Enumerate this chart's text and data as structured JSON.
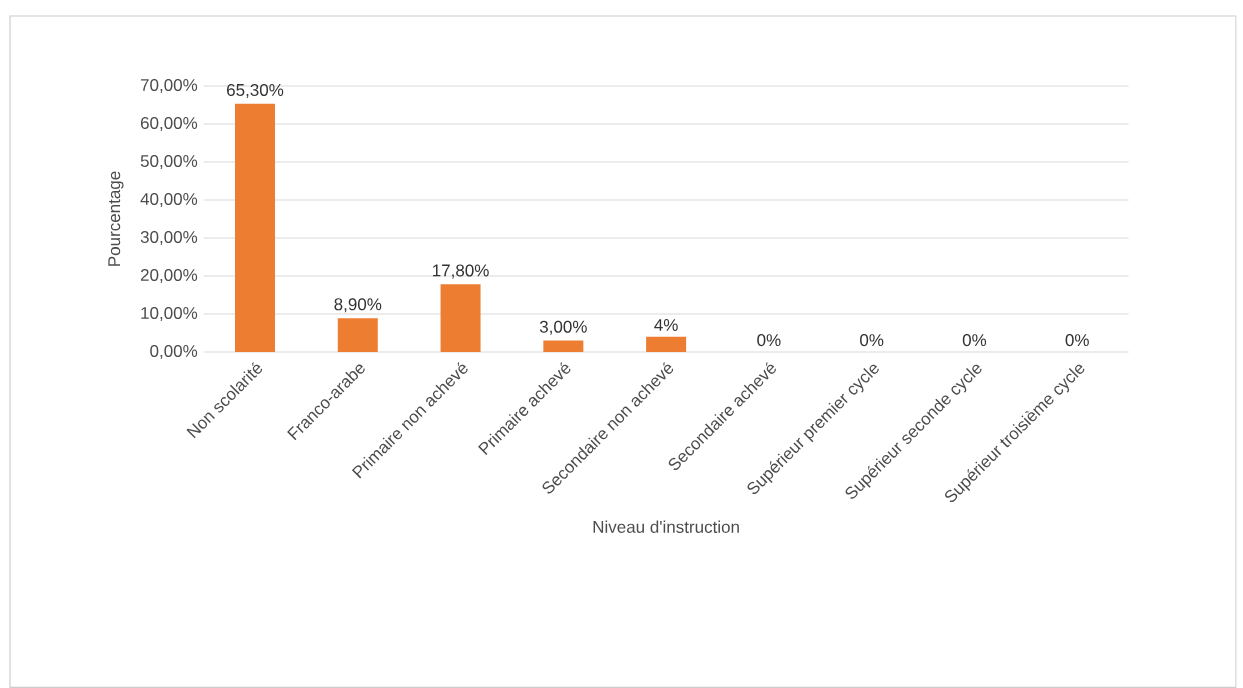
{
  "chart_data": {
    "type": "bar",
    "xlabel": "Niveau d'instruction",
    "ylabel": "Pourcentage",
    "categories": [
      "Non scolarité",
      "Franco-arabe",
      "Primaire non achevé",
      "Primaire achevé",
      "Secondaire non achevé",
      "Secondaire achevé",
      "Supérieur premier cycle",
      "Supérieur seconde cycle",
      "Supérieur troisième cycle"
    ],
    "values": [
      65.3,
      8.9,
      17.8,
      3.0,
      4,
      0,
      0,
      0,
      0
    ],
    "value_labels": [
      "65,30%",
      "8,90%",
      "17,80%",
      "3,00%",
      "4%",
      "0%",
      "0%",
      "0%",
      "0%"
    ],
    "color": "#ed7d31",
    "ylim": [
      0,
      70
    ],
    "yticks": [
      {
        "value": 0,
        "label": "0,00%"
      },
      {
        "value": 10,
        "label": "10,00%"
      },
      {
        "value": 20,
        "label": "20,00%"
      },
      {
        "value": 30,
        "label": "30,00%"
      },
      {
        "value": 40,
        "label": "40,00%"
      },
      {
        "value": 50,
        "label": "50,00%"
      },
      {
        "value": 60,
        "label": "60,00%"
      },
      {
        "value": 70,
        "label": "70,00%"
      }
    ],
    "grid": "y"
  }
}
